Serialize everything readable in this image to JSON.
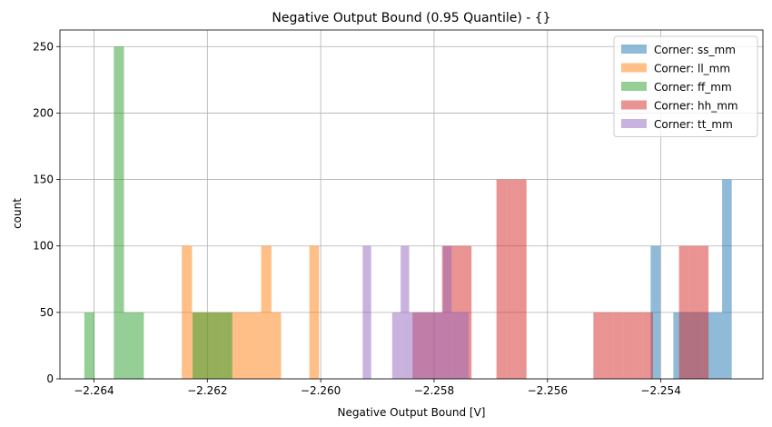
{
  "chart_data": {
    "type": "bar",
    "subtype": "overlapping-histogram",
    "title": "Negative Output Bound (0.95 Quantile) - {}",
    "xlabel": "Negative Output Bound [V]",
    "ylabel": "count",
    "xlim": [
      -2.2646,
      -2.2522
    ],
    "ylim": [
      0,
      262.5
    ],
    "x_ticks": [
      -2.264,
      -2.262,
      -2.26,
      -2.258,
      -2.256,
      -2.254
    ],
    "x_tick_labels": [
      "−2.264",
      "−2.262",
      "−2.260",
      "−2.258",
      "−2.256",
      "−2.254"
    ],
    "y_ticks": [
      0,
      50,
      100,
      150,
      200,
      250
    ],
    "y_tick_labels": [
      "0",
      "50",
      "100",
      "150",
      "200",
      "250"
    ],
    "grid": true,
    "legend_position": "top-right",
    "bar_alpha": 0.5,
    "series": [
      {
        "name": "Corner: ss_mm",
        "color": "#1f77b4",
        "bins": [
          {
            "x0": -2.25418,
            "x1": -2.25401,
            "count": 100
          },
          {
            "x0": -2.25378,
            "x1": -2.25361,
            "count": 50
          },
          {
            "x0": -2.25361,
            "x1": -2.25344,
            "count": 50
          },
          {
            "x0": -2.25344,
            "x1": -2.25327,
            "count": 50
          },
          {
            "x0": -2.25327,
            "x1": -2.25309,
            "count": 50
          },
          {
            "x0": -2.25309,
            "x1": -2.25292,
            "count": 50
          },
          {
            "x0": -2.25292,
            "x1": -2.25275,
            "count": 150
          }
        ]
      },
      {
        "name": "Corner: ll_mm",
        "color": "#ff7f0e",
        "bins": [
          {
            "x0": -2.26245,
            "x1": -2.26227,
            "count": 100
          },
          {
            "x0": -2.26227,
            "x1": -2.2621,
            "count": 50
          },
          {
            "x0": -2.2621,
            "x1": -2.26192,
            "count": 50
          },
          {
            "x0": -2.26192,
            "x1": -2.26175,
            "count": 50
          },
          {
            "x0": -2.26175,
            "x1": -2.26157,
            "count": 50
          },
          {
            "x0": -2.26157,
            "x1": -2.2614,
            "count": 50
          },
          {
            "x0": -2.2614,
            "x1": -2.26122,
            "count": 50
          },
          {
            "x0": -2.26122,
            "x1": -2.26105,
            "count": 50
          },
          {
            "x0": -2.26105,
            "x1": -2.26087,
            "count": 100
          },
          {
            "x0": -2.26087,
            "x1": -2.2607,
            "count": 50
          },
          {
            "x0": -2.2602,
            "x1": -2.26003,
            "count": 100
          }
        ]
      },
      {
        "name": "Corner: ff_mm",
        "color": "#2ca02c",
        "bins": [
          {
            "x0": -2.26417,
            "x1": -2.26399,
            "count": 50
          },
          {
            "x0": -2.26365,
            "x1": -2.26347,
            "count": 250
          },
          {
            "x0": -2.26347,
            "x1": -2.2633,
            "count": 50
          },
          {
            "x0": -2.2633,
            "x1": -2.26312,
            "count": 50
          },
          {
            "x0": -2.26226,
            "x1": -2.26208,
            "count": 50
          },
          {
            "x0": -2.26208,
            "x1": -2.26191,
            "count": 50
          },
          {
            "x0": -2.26191,
            "x1": -2.26173,
            "count": 50
          },
          {
            "x0": -2.26173,
            "x1": -2.26156,
            "count": 50
          }
        ]
      },
      {
        "name": "Corner: hh_mm",
        "color": "#d62728",
        "bins": [
          {
            "x0": -2.25838,
            "x1": -2.25821,
            "count": 50
          },
          {
            "x0": -2.25821,
            "x1": -2.25803,
            "count": 50
          },
          {
            "x0": -2.25803,
            "x1": -2.25786,
            "count": 50
          },
          {
            "x0": -2.25786,
            "x1": -2.25769,
            "count": 100
          },
          {
            "x0": -2.25769,
            "x1": -2.25751,
            "count": 100
          },
          {
            "x0": -2.25751,
            "x1": -2.25734,
            "count": 100
          },
          {
            "x0": -2.2569,
            "x1": -2.25672,
            "count": 150
          },
          {
            "x0": -2.25672,
            "x1": -2.25655,
            "count": 150
          },
          {
            "x0": -2.25655,
            "x1": -2.25637,
            "count": 150
          },
          {
            "x0": -2.25519,
            "x1": -2.25502,
            "count": 50
          },
          {
            "x0": -2.25502,
            "x1": -2.25484,
            "count": 50
          },
          {
            "x0": -2.25484,
            "x1": -2.25467,
            "count": 50
          },
          {
            "x0": -2.25467,
            "x1": -2.25449,
            "count": 50
          },
          {
            "x0": -2.25449,
            "x1": -2.25432,
            "count": 50
          },
          {
            "x0": -2.25432,
            "x1": -2.25414,
            "count": 50
          },
          {
            "x0": -2.25368,
            "x1": -2.25351,
            "count": 100
          },
          {
            "x0": -2.25351,
            "x1": -2.25333,
            "count": 100
          },
          {
            "x0": -2.25333,
            "x1": -2.25316,
            "count": 100
          }
        ]
      },
      {
        "name": "Corner: tt_mm",
        "color": "#9467bd",
        "bins": [
          {
            "x0": -2.25926,
            "x1": -2.25911,
            "count": 100
          },
          {
            "x0": -2.25874,
            "x1": -2.25859,
            "count": 50
          },
          {
            "x0": -2.25859,
            "x1": -2.25844,
            "count": 100
          },
          {
            "x0": -2.25844,
            "x1": -2.25829,
            "count": 50
          },
          {
            "x0": -2.25829,
            "x1": -2.25814,
            "count": 50
          },
          {
            "x0": -2.25814,
            "x1": -2.25799,
            "count": 50
          },
          {
            "x0": -2.25799,
            "x1": -2.25784,
            "count": 50
          },
          {
            "x0": -2.25784,
            "x1": -2.25769,
            "count": 100
          },
          {
            "x0": -2.25769,
            "x1": -2.25754,
            "count": 50
          },
          {
            "x0": -2.25754,
            "x1": -2.25739,
            "count": 50
          }
        ]
      }
    ]
  }
}
